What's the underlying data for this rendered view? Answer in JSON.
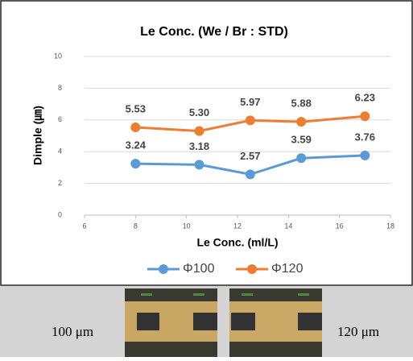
{
  "chart_data": {
    "type": "line",
    "title": "Le Conc. (We / Br :  STD)",
    "x_label": "Le Conc. (ml/L)",
    "y_label": "Dimple (㎛)",
    "x": [
      8,
      10.5,
      12.5,
      14.5,
      17
    ],
    "series": [
      {
        "name": "Φ100",
        "color": "#5b9bd5",
        "values": [
          3.24,
          3.18,
          2.57,
          3.59,
          3.76
        ],
        "value_labels": [
          "3.24",
          "3.18",
          "2.57",
          "3.59",
          "3.76"
        ]
      },
      {
        "name": "Φ120",
        "color": "#ed7d31",
        "values": [
          5.53,
          5.3,
          5.97,
          5.88,
          6.23
        ],
        "value_labels": [
          "5.53",
          "5.30",
          "5.97",
          "5.88",
          "6.23"
        ]
      }
    ],
    "xlim": [
      6,
      18
    ],
    "xticks": [
      6,
      8,
      10,
      12,
      14,
      16,
      18
    ],
    "ylim": [
      0,
      10
    ],
    "yticks": [
      0,
      2,
      4,
      6,
      8,
      10
    ],
    "grid": true,
    "legend": "bottom"
  },
  "photo_captions": [
    "100 μm",
    "120 μm"
  ]
}
